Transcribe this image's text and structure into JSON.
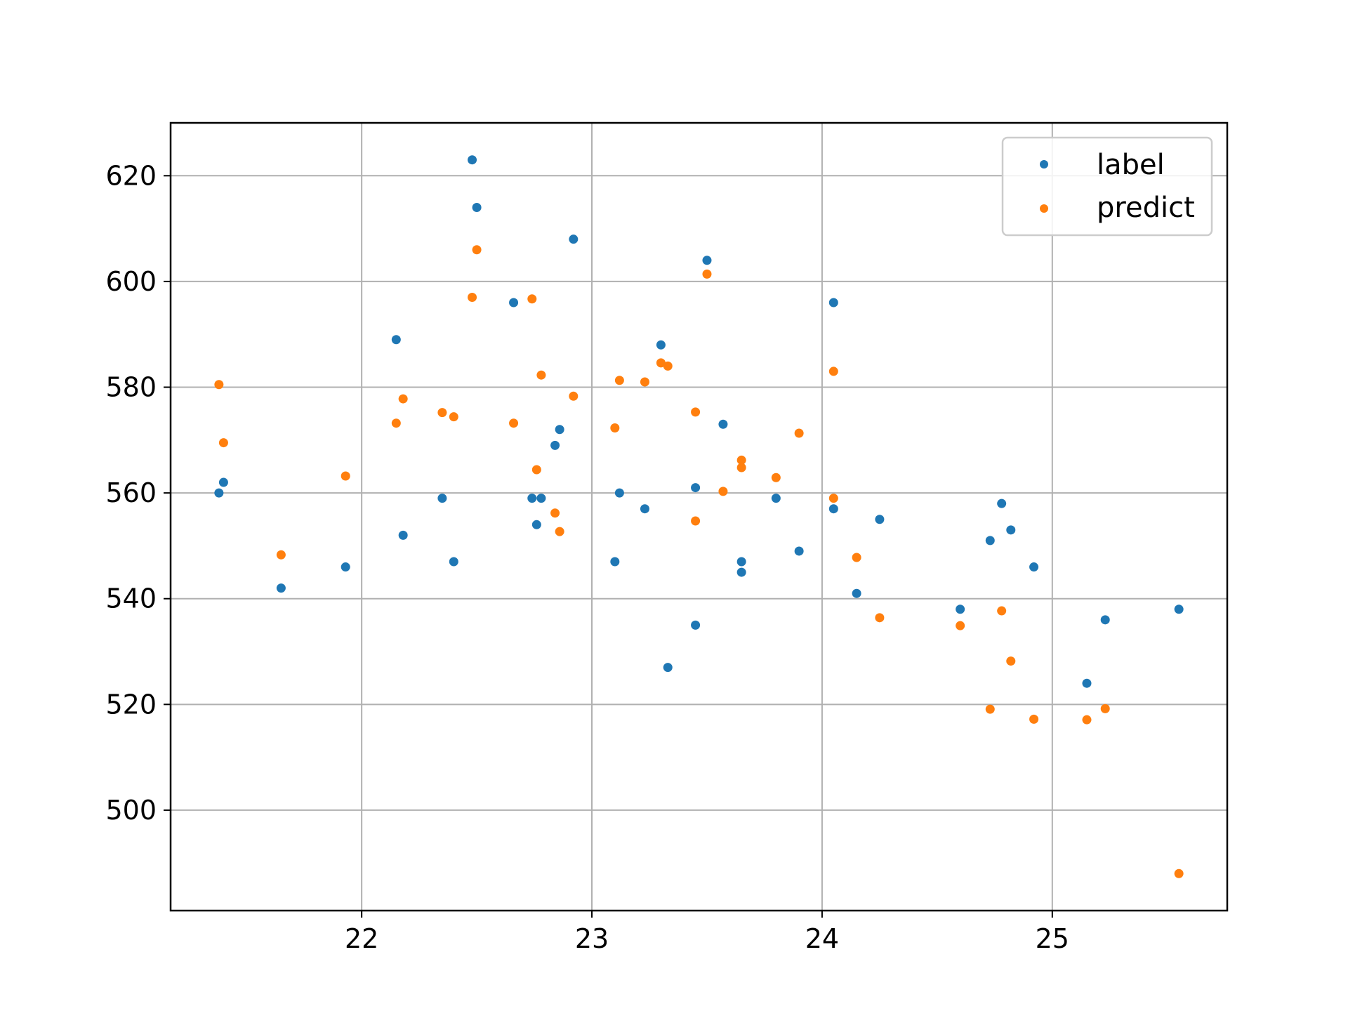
{
  "chart_data": {
    "type": "scatter",
    "xlim": [
      21.17,
      25.76
    ],
    "ylim": [
      481,
      630
    ],
    "x_ticks": [
      22,
      23,
      24,
      25
    ],
    "y_ticks": [
      500,
      520,
      540,
      560,
      580,
      600,
      620
    ],
    "grid": true,
    "legend_placement": "upper-right",
    "series": [
      {
        "name": "label",
        "color": "#1f77b4",
        "points": [
          [
            21.38,
            560
          ],
          [
            21.4,
            562
          ],
          [
            21.65,
            542
          ],
          [
            21.93,
            546
          ],
          [
            22.15,
            589
          ],
          [
            22.18,
            552
          ],
          [
            22.35,
            559
          ],
          [
            22.4,
            547
          ],
          [
            22.48,
            623
          ],
          [
            22.5,
            614
          ],
          [
            22.66,
            596
          ],
          [
            22.74,
            559
          ],
          [
            22.76,
            554
          ],
          [
            22.78,
            559
          ],
          [
            22.84,
            569
          ],
          [
            22.86,
            572
          ],
          [
            22.92,
            608
          ],
          [
            23.1,
            547
          ],
          [
            23.12,
            560
          ],
          [
            23.23,
            557
          ],
          [
            23.3,
            588
          ],
          [
            23.33,
            527
          ],
          [
            23.45,
            535
          ],
          [
            23.45,
            561
          ],
          [
            23.5,
            604
          ],
          [
            23.57,
            573
          ],
          [
            23.65,
            547
          ],
          [
            23.65,
            545
          ],
          [
            23.8,
            559
          ],
          [
            23.9,
            549
          ],
          [
            24.05,
            596
          ],
          [
            24.05,
            557
          ],
          [
            24.15,
            541
          ],
          [
            24.25,
            555
          ],
          [
            24.6,
            538
          ],
          [
            24.73,
            551
          ],
          [
            24.78,
            558
          ],
          [
            24.82,
            553
          ],
          [
            24.92,
            546
          ],
          [
            25.15,
            524
          ],
          [
            25.23,
            536
          ],
          [
            25.55,
            538
          ]
        ]
      },
      {
        "name": "predict",
        "color": "#ff7f0e",
        "points": [
          [
            21.38,
            580.5
          ],
          [
            21.4,
            569.5
          ],
          [
            21.65,
            548.3
          ],
          [
            21.93,
            563.2
          ],
          [
            22.15,
            573.2
          ],
          [
            22.18,
            577.8
          ],
          [
            22.35,
            575.2
          ],
          [
            22.4,
            574.4
          ],
          [
            22.48,
            597
          ],
          [
            22.5,
            606
          ],
          [
            22.66,
            573.2
          ],
          [
            22.74,
            596.7
          ],
          [
            22.76,
            564.4
          ],
          [
            22.78,
            582.3
          ],
          [
            22.84,
            556.2
          ],
          [
            22.86,
            552.7
          ],
          [
            22.92,
            578.3
          ],
          [
            23.1,
            572.3
          ],
          [
            23.12,
            581.3
          ],
          [
            23.23,
            581
          ],
          [
            23.3,
            584.6
          ],
          [
            23.33,
            584
          ],
          [
            23.45,
            575.3
          ],
          [
            23.45,
            554.7
          ],
          [
            23.5,
            601.4
          ],
          [
            23.57,
            560.3
          ],
          [
            23.65,
            566.2
          ],
          [
            23.65,
            564.8
          ],
          [
            23.8,
            562.9
          ],
          [
            23.9,
            571.3
          ],
          [
            24.05,
            583
          ],
          [
            24.05,
            559
          ],
          [
            24.15,
            547.8
          ],
          [
            24.25,
            536.4
          ],
          [
            24.6,
            534.9
          ],
          [
            24.73,
            519.1
          ],
          [
            24.78,
            537.7
          ],
          [
            24.82,
            528.2
          ],
          [
            24.92,
            517.2
          ],
          [
            25.15,
            517.1
          ],
          [
            25.23,
            519.2
          ],
          [
            25.55,
            488
          ]
        ]
      }
    ]
  }
}
